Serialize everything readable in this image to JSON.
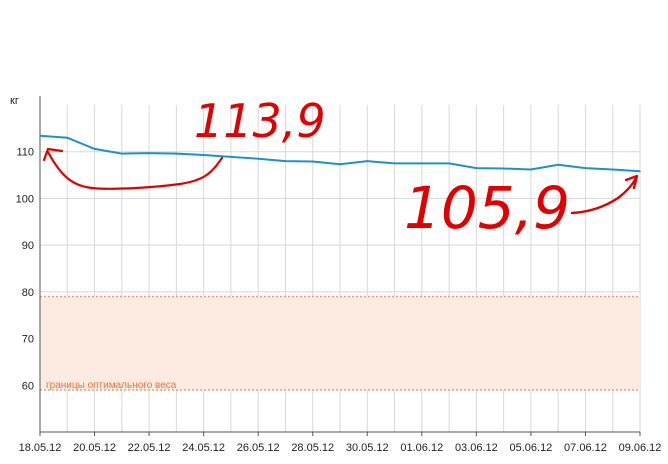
{
  "chart_data": {
    "type": "line",
    "ylabel": "кг",
    "ylim": [
      50,
      120
    ],
    "yticks": [
      60,
      70,
      80,
      90,
      100,
      110
    ],
    "x_tick_labels": [
      "18.05.12",
      "20.05.12",
      "22.05.12",
      "24.05.12",
      "26.05.12",
      "28.05.12",
      "30.05.12",
      "01.06.12",
      "03.06.12",
      "05.06.12",
      "07.06.12",
      "09.06.12"
    ],
    "x": [
      "18.05.12",
      "19.05.12",
      "20.05.12",
      "21.05.12",
      "22.05.12",
      "23.05.12",
      "24.05.12",
      "25.05.12",
      "26.05.12",
      "27.05.12",
      "28.05.12",
      "29.05.12",
      "30.05.12",
      "31.05.12",
      "01.06.12",
      "02.06.12",
      "03.06.12",
      "04.06.12",
      "05.06.12",
      "06.06.12",
      "07.06.12",
      "08.06.12",
      "09.06.12"
    ],
    "series": [
      {
        "values": [
          113.4,
          113.0,
          110.6,
          109.6,
          109.7,
          109.6,
          109.3,
          108.9,
          108.5,
          108.0,
          107.9,
          107.3,
          108.0,
          107.5,
          107.5,
          107.5,
          106.5,
          106.4,
          106.2,
          107.2,
          106.5,
          106.2,
          105.8
        ],
        "color": "#1e90d0"
      }
    ],
    "band": {
      "from": 59,
      "to": 79,
      "label": "границы оптимального веса",
      "fill": "#fdebe2",
      "line": "#e8a07a",
      "label_color": "#e8743b"
    },
    "grid": true,
    "annotations": [
      {
        "text": "113,9",
        "color": "#e00000"
      },
      {
        "text": "105,9",
        "color": "#e00000"
      }
    ]
  }
}
